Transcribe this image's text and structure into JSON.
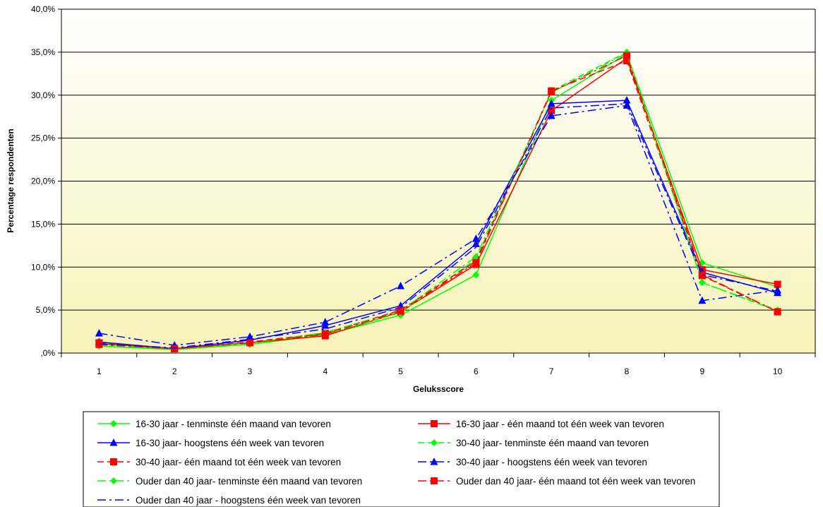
{
  "chart_data": {
    "type": "line",
    "xlabel": "Geluksscore",
    "ylabel": "Percentage respondenten",
    "categories": [
      "1",
      "2",
      "3",
      "4",
      "5",
      "6",
      "7",
      "8",
      "9",
      "10"
    ],
    "ylim": [
      0,
      40
    ],
    "y_ticks": [
      ",0%",
      "5,0%",
      "10,0%",
      "15,0%",
      "20,0%",
      "25,0%",
      "30,0%",
      "35,0%",
      "40,0%"
    ],
    "grid": "horizontal",
    "legend_position": "bottom",
    "series": [
      {
        "name": "16-30 jaar - tenminste één maand van tevoren",
        "color": "#00ff00",
        "dash": "solid",
        "marker": "diamond",
        "values": [
          0.8,
          0.4,
          1.0,
          2.1,
          4.4,
          9.1,
          29.4,
          34.8,
          10.5,
          7.7
        ]
      },
      {
        "name": "16-30 jaar - één maand tot één week van tevoren",
        "color": "#ff0000",
        "dash": "solid",
        "marker": "square",
        "values": [
          1.1,
          0.5,
          1.2,
          2.0,
          4.8,
          10.3,
          28.2,
          34.3,
          9.7,
          8.0
        ]
      },
      {
        "name": "16-30 jaar- hoogstens één week van tevoren",
        "color": "#0000ff",
        "dash": "solid",
        "marker": "triangle",
        "values": [
          1.3,
          0.5,
          1.5,
          3.2,
          5.5,
          12.7,
          29.0,
          29.4,
          9.4,
          7.0
        ]
      },
      {
        "name": "30-40 jaar- tenminste één maand van tevoren",
        "color": "#00ff00",
        "dash": "dash",
        "marker": "diamond",
        "values": [
          1.0,
          0.4,
          1.2,
          2.2,
          4.7,
          10.9,
          30.5,
          35.0,
          8.2,
          4.9
        ]
      },
      {
        "name": "30-40 jaar- één maand tot één week van tevoren",
        "color": "#ff0000",
        "dash": "dash",
        "marker": "square",
        "values": [
          1.2,
          0.5,
          1.3,
          2.3,
          5.0,
          10.7,
          30.5,
          34.0,
          9.0,
          4.8
        ]
      },
      {
        "name": "30-40 jaar - hoogstens één week van tevoren",
        "color": "#0000ff",
        "dash": "dashdot",
        "marker": "triangle",
        "values": [
          2.3,
          0.9,
          1.9,
          3.6,
          7.8,
          13.3,
          27.6,
          28.8,
          6.1,
          7.3
        ]
      },
      {
        "name": "Ouder dan 40 jaar- tenminste één maand van tevoren",
        "color": "#00ff00",
        "dash": "dashdot",
        "marker": "diamond",
        "values": [
          0.9,
          0.4,
          1.1,
          2.4,
          4.9,
          11.2,
          30.3,
          34.9,
          8.2,
          5.0
        ]
      },
      {
        "name": "Ouder dan 40 jaar- één maand tot één week van tevoren",
        "color": "#ff0000",
        "dash": "dashdot",
        "marker": "square",
        "values": [
          1.0,
          0.5,
          1.2,
          2.2,
          4.9,
          10.5,
          30.4,
          34.6,
          9.1,
          4.8
        ]
      },
      {
        "name": "Ouder dan 40 jaar - hoogstens één week van tevoren",
        "color": "#0000ff",
        "dash": "dashdot",
        "marker": "none",
        "values": [
          1.1,
          0.6,
          1.6,
          2.8,
          5.3,
          12.3,
          28.5,
          29.0,
          9.1,
          7.2
        ]
      }
    ]
  }
}
